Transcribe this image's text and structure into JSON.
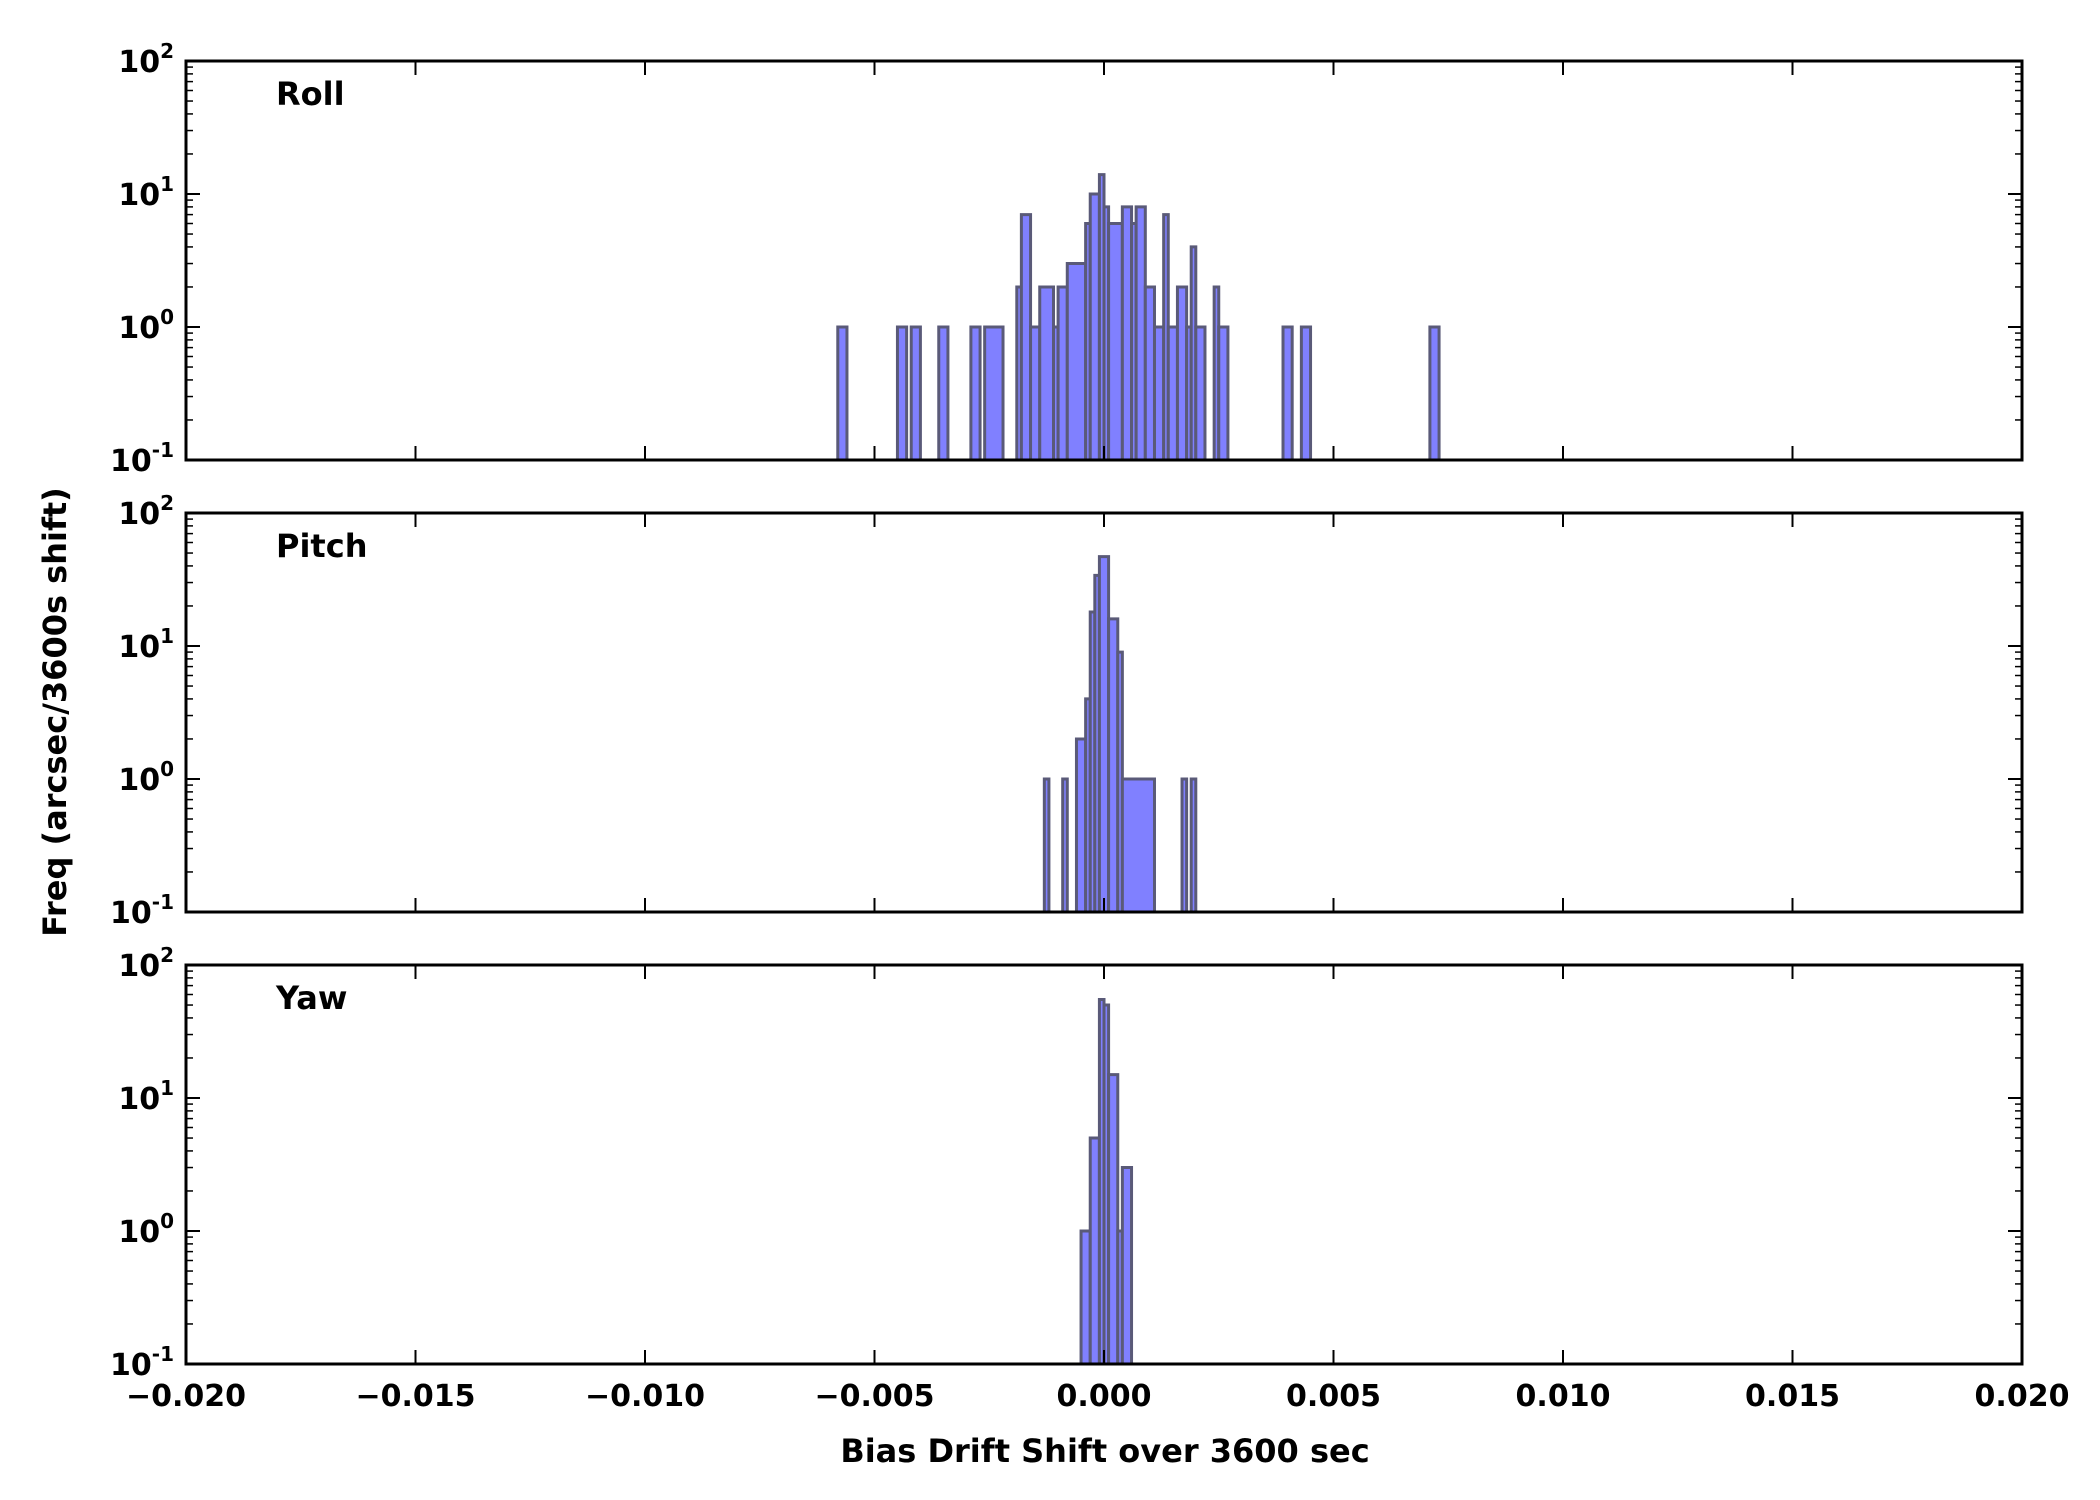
{
  "chart_data": {
    "type": "histogram",
    "xlabel": "Bias Drift Shift over 3600 sec",
    "ylabel": "Freq (arcsec/3600s shift)",
    "xlim": [
      -0.02,
      0.02
    ],
    "xticks": [
      -0.02,
      -0.015,
      -0.01,
      -0.005,
      0.0,
      0.005,
      0.01,
      0.015,
      0.02
    ],
    "xtick_labels": [
      "−0.020",
      "−0.015",
      "−0.010",
      "−0.005",
      "0.000",
      "0.005",
      "0.010",
      "0.015",
      "0.020"
    ],
    "yscale": "log",
    "ylim": [
      0.1,
      100
    ],
    "yticks": [
      {
        "value": 0.1,
        "base": "10",
        "exp": "-1"
      },
      {
        "value": 1,
        "base": "10",
        "exp": "0"
      },
      {
        "value": 10,
        "base": "10",
        "exp": "1"
      },
      {
        "value": 100,
        "base": "10",
        "exp": "2"
      }
    ],
    "colors": {
      "fill": "#8080ff",
      "edge": "#5a5a78",
      "axis": "#000000"
    },
    "panels": [
      {
        "label": "Roll",
        "bins": [
          {
            "x": [
              -0.0058,
              -0.0056
            ],
            "count": 1
          },
          {
            "x": [
              -0.0045,
              -0.0043
            ],
            "count": 1
          },
          {
            "x": [
              -0.0042,
              -0.004
            ],
            "count": 1
          },
          {
            "x": [
              -0.0036,
              -0.0034
            ],
            "count": 1
          },
          {
            "x": [
              -0.0029,
              -0.0027
            ],
            "count": 1
          },
          {
            "x": [
              -0.0026,
              -0.0022
            ],
            "count": 1
          },
          {
            "x": [
              -0.0019,
              -0.0018
            ],
            "count": 2
          },
          {
            "x": [
              -0.0018,
              -0.0016
            ],
            "count": 7
          },
          {
            "x": [
              -0.0016,
              -0.0014
            ],
            "count": 1
          },
          {
            "x": [
              -0.0014,
              -0.0011
            ],
            "count": 2
          },
          {
            "x": [
              -0.0011,
              -0.001
            ],
            "count": 1
          },
          {
            "x": [
              -0.001,
              -0.0008
            ],
            "count": 2
          },
          {
            "x": [
              -0.0008,
              -0.0004
            ],
            "count": 3
          },
          {
            "x": [
              -0.0004,
              -0.0003
            ],
            "count": 6
          },
          {
            "x": [
              -0.0003,
              -0.0001
            ],
            "count": 10
          },
          {
            "x": [
              -0.0001,
              0.0
            ],
            "count": 14
          },
          {
            "x": [
              0.0,
              0.0001
            ],
            "count": 8
          },
          {
            "x": [
              0.0001,
              0.0004
            ],
            "count": 6
          },
          {
            "x": [
              0.0004,
              0.0006
            ],
            "count": 8
          },
          {
            "x": [
              0.0006,
              0.0007
            ],
            "count": 6
          },
          {
            "x": [
              0.0007,
              0.0009
            ],
            "count": 8
          },
          {
            "x": [
              0.0009,
              0.0011
            ],
            "count": 2
          },
          {
            "x": [
              0.0011,
              0.0013
            ],
            "count": 1
          },
          {
            "x": [
              0.0013,
              0.0014
            ],
            "count": 7
          },
          {
            "x": [
              0.0014,
              0.0016
            ],
            "count": 1
          },
          {
            "x": [
              0.0016,
              0.0018
            ],
            "count": 2
          },
          {
            "x": [
              0.0018,
              0.0019
            ],
            "count": 1
          },
          {
            "x": [
              0.0019,
              0.002
            ],
            "count": 4
          },
          {
            "x": [
              0.002,
              0.0022
            ],
            "count": 1
          },
          {
            "x": [
              0.0024,
              0.0025
            ],
            "count": 2
          },
          {
            "x": [
              0.0025,
              0.0027
            ],
            "count": 1
          },
          {
            "x": [
              0.0039,
              0.0041
            ],
            "count": 1
          },
          {
            "x": [
              0.0043,
              0.0045
            ],
            "count": 1
          },
          {
            "x": [
              0.0071,
              0.0073
            ],
            "count": 1
          }
        ]
      },
      {
        "label": "Pitch",
        "bins": [
          {
            "x": [
              -0.0013,
              -0.0012
            ],
            "count": 1
          },
          {
            "x": [
              -0.0009,
              -0.0008
            ],
            "count": 1
          },
          {
            "x": [
              -0.0006,
              -0.0004
            ],
            "count": 2
          },
          {
            "x": [
              -0.0004,
              -0.0003
            ],
            "count": 4
          },
          {
            "x": [
              -0.0003,
              -0.0002
            ],
            "count": 18
          },
          {
            "x": [
              -0.0002,
              -0.0001
            ],
            "count": 34
          },
          {
            "x": [
              -0.0001,
              0.0001
            ],
            "count": 47
          },
          {
            "x": [
              0.0001,
              0.0003
            ],
            "count": 16
          },
          {
            "x": [
              0.0003,
              0.0004
            ],
            "count": 9
          },
          {
            "x": [
              0.0004,
              0.0011
            ],
            "count": 1
          },
          {
            "x": [
              0.0017,
              0.0018
            ],
            "count": 1
          },
          {
            "x": [
              0.0019,
              0.002
            ],
            "count": 1
          }
        ]
      },
      {
        "label": "Yaw",
        "bins": [
          {
            "x": [
              -0.0005,
              -0.0003
            ],
            "count": 1
          },
          {
            "x": [
              -0.0003,
              -0.0001
            ],
            "count": 5
          },
          {
            "x": [
              -0.0001,
              0.0
            ],
            "count": 55
          },
          {
            "x": [
              0.0,
              0.0001
            ],
            "count": 50
          },
          {
            "x": [
              0.0001,
              0.0003
            ],
            "count": 15
          },
          {
            "x": [
              0.0003,
              0.0004
            ],
            "count": 1
          },
          {
            "x": [
              0.0004,
              0.0006
            ],
            "count": 3
          }
        ]
      }
    ]
  }
}
